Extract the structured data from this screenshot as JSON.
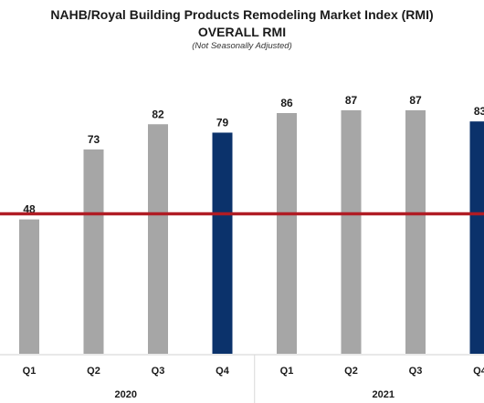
{
  "title": "NAHB/Royal Building Products Remodeling Market Index (RMI)",
  "subtitle": "OVERALL RMI",
  "note": "(Not Seasonally Adjusted)",
  "colors": {
    "regular": "#a6a6a6",
    "highlight": "#0b326b",
    "baseline": "#b01c24"
  },
  "chart_data": {
    "type": "bar",
    "title": "NAHB/Royal Building Products Remodeling Market Index (RMI)",
    "subtitle": "OVERALL RMI",
    "categories": [
      "Q1",
      "Q2",
      "Q3",
      "Q4",
      "Q1",
      "Q2",
      "Q3",
      "Q4"
    ],
    "groups": [
      {
        "label": "2020",
        "categories": [
          "Q1",
          "Q2",
          "Q3",
          "Q4"
        ]
      },
      {
        "label": "2021",
        "categories": [
          "Q1",
          "Q2",
          "Q3",
          "Q4"
        ]
      }
    ],
    "values": [
      48,
      73,
      82,
      79,
      86,
      87,
      87,
      83
    ],
    "highlight": [
      false,
      false,
      false,
      true,
      false,
      false,
      false,
      true
    ],
    "reference_line": 50,
    "ylim": [
      0,
      100
    ],
    "grid": false
  }
}
